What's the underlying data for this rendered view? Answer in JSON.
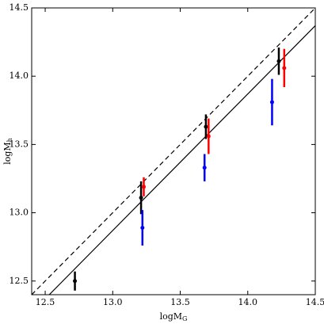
{
  "chart_data": {
    "type": "scatter",
    "xlabel": "logM",
    "xlabel_subscript": "G",
    "ylabel": "logM",
    "ylabel_subscript": "h",
    "xlim": [
      12.4,
      14.5
    ],
    "ylim": [
      12.4,
      14.5
    ],
    "xticks": [
      12.5,
      {
        "value": 13,
        "label": "13.0"
      },
      13.5,
      {
        "value": 14,
        "label": "14.0"
      },
      14.5
    ],
    "yticks": [
      12.5,
      {
        "value": 13,
        "label": "13.0"
      },
      13.5,
      {
        "value": 14,
        "label": "14.0"
      },
      14.5
    ],
    "lines": [
      {
        "style": "dashed",
        "color": "#000000",
        "x": [
          12.4,
          14.5
        ],
        "values": [
          12.4,
          14.5
        ]
      },
      {
        "style": "solid",
        "color": "#000000",
        "x": [
          12.53,
          14.5
        ],
        "values": [
          12.4,
          14.37
        ]
      }
    ],
    "series": [
      {
        "color": "#000000",
        "x": [
          12.72,
          13.21,
          13.69,
          14.23
        ],
        "values": [
          12.5,
          13.11,
          13.63,
          14.11
        ],
        "errors": [
          0.07,
          0.12,
          0.09,
          0.1
        ]
      },
      {
        "color": "#ff0000",
        "x": [
          13.23,
          13.71,
          14.27
        ],
        "values": [
          13.19,
          13.56,
          14.06
        ],
        "errors": [
          0.07,
          0.13,
          0.14
        ]
      },
      {
        "color": "#0000ff",
        "x": [
          13.22,
          13.68,
          14.18
        ],
        "values": [
          12.89,
          13.33,
          13.81
        ],
        "errors": [
          0.13,
          0.1,
          0.17
        ]
      }
    ]
  }
}
